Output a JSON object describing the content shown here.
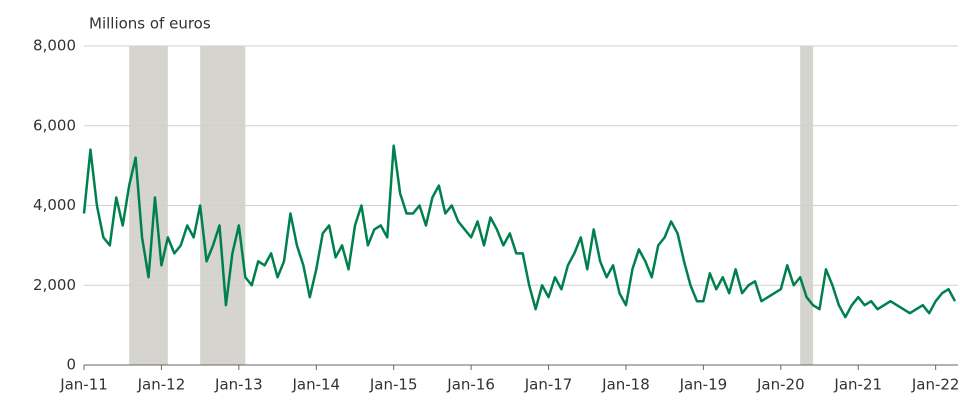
{
  "chart_data": {
    "type": "line",
    "y_axis_label": "Millions of euros",
    "x": [
      "2011-01",
      "2011-02",
      "2011-03",
      "2011-04",
      "2011-05",
      "2011-06",
      "2011-07",
      "2011-08",
      "2011-09",
      "2011-10",
      "2011-11",
      "2011-12",
      "2012-01",
      "2012-02",
      "2012-03",
      "2012-04",
      "2012-05",
      "2012-06",
      "2012-07",
      "2012-08",
      "2012-09",
      "2012-10",
      "2012-11",
      "2012-12",
      "2013-01",
      "2013-02",
      "2013-03",
      "2013-04",
      "2013-05",
      "2013-06",
      "2013-07",
      "2013-08",
      "2013-09",
      "2013-10",
      "2013-11",
      "2013-12",
      "2014-01",
      "2014-02",
      "2014-03",
      "2014-04",
      "2014-05",
      "2014-06",
      "2014-07",
      "2014-08",
      "2014-09",
      "2014-10",
      "2014-11",
      "2014-12",
      "2015-01",
      "2015-02",
      "2015-03",
      "2015-04",
      "2015-05",
      "2015-06",
      "2015-07",
      "2015-08",
      "2015-09",
      "2015-10",
      "2015-11",
      "2015-12",
      "2016-01",
      "2016-02",
      "2016-03",
      "2016-04",
      "2016-05",
      "2016-06",
      "2016-07",
      "2016-08",
      "2016-09",
      "2016-10",
      "2016-11",
      "2016-12",
      "2017-01",
      "2017-02",
      "2017-03",
      "2017-04",
      "2017-05",
      "2017-06",
      "2017-07",
      "2017-08",
      "2017-09",
      "2017-10",
      "2017-11",
      "2017-12",
      "2018-01",
      "2018-02",
      "2018-03",
      "2018-04",
      "2018-05",
      "2018-06",
      "2018-07",
      "2018-08",
      "2018-09",
      "2018-10",
      "2018-11",
      "2018-12",
      "2019-01",
      "2019-02",
      "2019-03",
      "2019-04",
      "2019-05",
      "2019-06",
      "2019-07",
      "2019-08",
      "2019-09",
      "2019-10",
      "2019-11",
      "2019-12",
      "2020-01",
      "2020-02",
      "2020-03",
      "2020-04",
      "2020-05",
      "2020-06",
      "2020-07",
      "2020-08",
      "2020-09",
      "2020-10",
      "2020-11",
      "2020-12",
      "2021-01",
      "2021-02",
      "2021-03",
      "2021-04",
      "2021-05",
      "2021-06",
      "2021-07",
      "2021-08",
      "2021-09",
      "2021-10",
      "2021-11",
      "2021-12",
      "2022-01",
      "2022-02",
      "2022-03",
      "2022-04"
    ],
    "series": [
      {
        "color": "#00804e",
        "values": [
          3800,
          5400,
          4000,
          3200,
          3000,
          4200,
          3500,
          4500,
          5200,
          3200,
          2200,
          4200,
          2500,
          3200,
          2800,
          3000,
          3500,
          3200,
          4000,
          2600,
          3000,
          3500,
          1500,
          2800,
          3500,
          2200,
          2000,
          2600,
          2500,
          2800,
          2200,
          2600,
          3800,
          3000,
          2500,
          1700,
          2400,
          3300,
          3500,
          2700,
          3000,
          2400,
          3500,
          4000,
          3000,
          3400,
          3500,
          3200,
          5500,
          4300,
          3800,
          3800,
          4000,
          3500,
          4200,
          4500,
          3800,
          4000,
          3600,
          3400,
          3200,
          3600,
          3000,
          3700,
          3400,
          3000,
          3300,
          2800,
          2800,
          2000,
          1400,
          2000,
          1700,
          2200,
          1900,
          2500,
          2800,
          3200,
          2400,
          3400,
          2600,
          2200,
          2500,
          1800,
          1500,
          2400,
          2900,
          2600,
          2200,
          3000,
          3200,
          3600,
          3300,
          2600,
          2000,
          1600,
          1600,
          2300,
          1900,
          2200,
          1800,
          2400,
          1800,
          2000,
          2100,
          1600,
          1700,
          1800,
          1900,
          2500,
          2000,
          2200,
          1700,
          1500,
          1400,
          2400,
          2000,
          1500,
          1200,
          1500,
          1700,
          1500,
          1600,
          1400,
          1500,
          1600,
          1500,
          1400,
          1300,
          1400,
          1500,
          1300,
          1600,
          1800,
          1900,
          1600
        ]
      }
    ],
    "shaded_periods": [
      {
        "start": "2011-08",
        "end": "2012-02"
      },
      {
        "start": "2012-07",
        "end": "2013-02"
      },
      {
        "start": "2020-04",
        "end": "2020-06"
      }
    ],
    "shade_color": "#d6d4ce",
    "xlim": [
      "2011-01",
      "2022-04"
    ],
    "xticks": [
      {
        "value": "2011-01",
        "label": "Jan-11"
      },
      {
        "value": "2012-01",
        "label": "Jan-12"
      },
      {
        "value": "2013-01",
        "label": "Jan-13"
      },
      {
        "value": "2014-01",
        "label": "Jan-14"
      },
      {
        "value": "2015-01",
        "label": "Jan-15"
      },
      {
        "value": "2016-01",
        "label": "Jan-16"
      },
      {
        "value": "2017-01",
        "label": "Jan-17"
      },
      {
        "value": "2018-01",
        "label": "Jan-18"
      },
      {
        "value": "2019-01",
        "label": "Jan-19"
      },
      {
        "value": "2020-01",
        "label": "Jan-20"
      },
      {
        "value": "2021-01",
        "label": "Jan-21"
      },
      {
        "value": "2022-01",
        "label": "Jan-22"
      }
    ],
    "ylim": [
      0,
      8000
    ],
    "yticks": [
      0,
      {
        "value": 2000,
        "label": "2,000"
      },
      {
        "value": 4000,
        "label": "4,000"
      },
      {
        "value": 6000,
        "label": "6,000"
      },
      {
        "value": 8000,
        "label": "8,000"
      }
    ],
    "grid": true
  }
}
